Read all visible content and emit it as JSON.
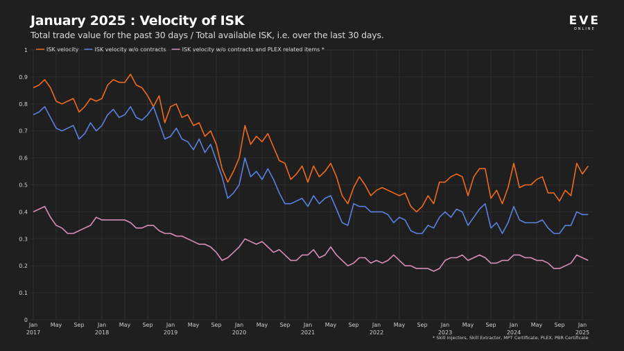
{
  "title": "January 2025 : Velocity of ISK",
  "subtitle": "Total trade value for the past 30 days / Total available ISK, i.e. over the last 30 days.",
  "logo": {
    "text": "EVE",
    "subtext": "ONLINE"
  },
  "footnote": "* Skill Injectors, Skill Extractor, MPT Certificate, PLEX, PBR Certificate",
  "chart_data": {
    "type": "line",
    "title": "January 2025 : Velocity of ISK",
    "xlabel": "",
    "ylabel": "",
    "ylim": [
      0,
      1
    ],
    "xlim": [
      "2017-01",
      "2025-03"
    ],
    "grid": true,
    "legend_position": "top-left",
    "y_ticks": [
      "0",
      "0.1",
      "0.2",
      "0.3",
      "0.4",
      "0.5",
      "0.6",
      "0.7",
      "0.8",
      "0.9",
      "1"
    ],
    "x_ticks": [
      {
        "month": "Jan",
        "year": "2017",
        "date": "2017-01"
      },
      {
        "month": "May",
        "year": "",
        "date": "2017-05"
      },
      {
        "month": "Sep",
        "year": "",
        "date": "2017-09"
      },
      {
        "month": "Jan",
        "year": "2018",
        "date": "2018-01"
      },
      {
        "month": "May",
        "year": "",
        "date": "2018-05"
      },
      {
        "month": "Sep",
        "year": "",
        "date": "2018-09"
      },
      {
        "month": "Jan",
        "year": "2019",
        "date": "2019-01"
      },
      {
        "month": "May",
        "year": "",
        "date": "2019-05"
      },
      {
        "month": "Sep",
        "year": "",
        "date": "2019-09"
      },
      {
        "month": "Jan",
        "year": "2020",
        "date": "2020-01"
      },
      {
        "month": "May",
        "year": "",
        "date": "2020-05"
      },
      {
        "month": "Sep",
        "year": "",
        "date": "2020-09"
      },
      {
        "month": "Jan",
        "year": "2021",
        "date": "2021-01"
      },
      {
        "month": "May",
        "year": "",
        "date": "2021-05"
      },
      {
        "month": "Sep",
        "year": "",
        "date": "2021-09"
      },
      {
        "month": "Jan",
        "year": "2022",
        "date": "2022-01"
      },
      {
        "month": "May",
        "year": "",
        "date": "2022-05"
      },
      {
        "month": "Sep",
        "year": "",
        "date": "2022-09"
      },
      {
        "month": "Jan",
        "year": "2023",
        "date": "2023-01"
      },
      {
        "month": "May",
        "year": "",
        "date": "2023-05"
      },
      {
        "month": "Sep",
        "year": "",
        "date": "2023-09"
      },
      {
        "month": "Jan",
        "year": "2024",
        "date": "2024-01"
      },
      {
        "month": "May",
        "year": "",
        "date": "2024-05"
      },
      {
        "month": "Sep",
        "year": "",
        "date": "2024-09"
      },
      {
        "month": "Jan",
        "year": "2025",
        "date": "2025-01"
      }
    ],
    "x": [
      "2017-01",
      "2017-02",
      "2017-03",
      "2017-04",
      "2017-05",
      "2017-06",
      "2017-07",
      "2017-08",
      "2017-09",
      "2017-10",
      "2017-11",
      "2017-12",
      "2018-01",
      "2018-02",
      "2018-03",
      "2018-04",
      "2018-05",
      "2018-06",
      "2018-07",
      "2018-08",
      "2018-09",
      "2018-10",
      "2018-11",
      "2018-12",
      "2019-01",
      "2019-02",
      "2019-03",
      "2019-04",
      "2019-05",
      "2019-06",
      "2019-07",
      "2019-08",
      "2019-09",
      "2019-10",
      "2019-11",
      "2019-12",
      "2020-01",
      "2020-02",
      "2020-03",
      "2020-04",
      "2020-05",
      "2020-06",
      "2020-07",
      "2020-08",
      "2020-09",
      "2020-10",
      "2020-11",
      "2020-12",
      "2021-01",
      "2021-02",
      "2021-03",
      "2021-04",
      "2021-05",
      "2021-06",
      "2021-07",
      "2021-08",
      "2021-09",
      "2021-10",
      "2021-11",
      "2021-12",
      "2022-01",
      "2022-02",
      "2022-03",
      "2022-04",
      "2022-05",
      "2022-06",
      "2022-07",
      "2022-08",
      "2022-09",
      "2022-10",
      "2022-11",
      "2022-12",
      "2023-01",
      "2023-02",
      "2023-03",
      "2023-04",
      "2023-05",
      "2023-06",
      "2023-07",
      "2023-08",
      "2023-09",
      "2023-10",
      "2023-11",
      "2023-12",
      "2024-01",
      "2024-02",
      "2024-03",
      "2024-04",
      "2024-05",
      "2024-06",
      "2024-07",
      "2024-08",
      "2024-09",
      "2024-10",
      "2024-11",
      "2024-12",
      "2025-01",
      "2025-02"
    ],
    "series": [
      {
        "name": "ISK velocity",
        "color": "#f26b1d",
        "values": [
          0.86,
          0.87,
          0.89,
          0.86,
          0.81,
          0.8,
          0.81,
          0.82,
          0.77,
          0.79,
          0.82,
          0.81,
          0.82,
          0.87,
          0.89,
          0.88,
          0.88,
          0.91,
          0.87,
          0.86,
          0.83,
          0.79,
          0.83,
          0.73,
          0.79,
          0.8,
          0.75,
          0.76,
          0.72,
          0.73,
          0.68,
          0.7,
          0.65,
          0.56,
          0.51,
          0.55,
          0.6,
          0.72,
          0.65,
          0.68,
          0.66,
          0.69,
          0.64,
          0.59,
          0.58,
          0.52,
          0.54,
          0.57,
          0.51,
          0.57,
          0.53,
          0.55,
          0.58,
          0.53,
          0.46,
          0.43,
          0.49,
          0.53,
          0.5,
          0.46,
          0.48,
          0.49,
          0.48,
          0.47,
          0.46,
          0.47,
          0.42,
          0.4,
          0.42,
          0.46,
          0.43,
          0.51,
          0.51,
          0.53,
          0.54,
          0.53,
          0.46,
          0.53,
          0.56,
          0.56,
          0.45,
          0.48,
          0.43,
          0.49,
          0.58,
          0.49,
          0.5,
          0.5,
          0.52,
          0.53,
          0.47,
          0.47,
          0.44,
          0.48,
          0.46,
          0.58,
          0.54,
          0.57
        ]
      },
      {
        "name": "ISK velocity w/o contracts",
        "color": "#5b82e0",
        "values": [
          0.76,
          0.77,
          0.79,
          0.75,
          0.71,
          0.7,
          0.71,
          0.72,
          0.67,
          0.69,
          0.73,
          0.7,
          0.72,
          0.76,
          0.78,
          0.75,
          0.76,
          0.79,
          0.75,
          0.74,
          0.76,
          0.79,
          0.73,
          0.67,
          0.68,
          0.71,
          0.67,
          0.66,
          0.63,
          0.67,
          0.62,
          0.65,
          0.59,
          0.53,
          0.45,
          0.47,
          0.5,
          0.6,
          0.53,
          0.55,
          0.52,
          0.56,
          0.52,
          0.47,
          0.43,
          0.43,
          0.44,
          0.45,
          0.42,
          0.46,
          0.43,
          0.45,
          0.46,
          0.41,
          0.36,
          0.35,
          0.43,
          0.42,
          0.42,
          0.4,
          0.4,
          0.4,
          0.39,
          0.36,
          0.38,
          0.37,
          0.33,
          0.32,
          0.32,
          0.35,
          0.34,
          0.38,
          0.4,
          0.38,
          0.41,
          0.4,
          0.35,
          0.38,
          0.41,
          0.43,
          0.34,
          0.36,
          0.32,
          0.36,
          0.42,
          0.37,
          0.36,
          0.36,
          0.36,
          0.37,
          0.34,
          0.32,
          0.32,
          0.35,
          0.35,
          0.4,
          0.39,
          0.39
        ]
      },
      {
        "name": "ISK velocity w/o contracts and PLEX related items *",
        "color": "#d98fb8",
        "values": [
          0.4,
          0.41,
          0.42,
          0.38,
          0.35,
          0.34,
          0.32,
          0.32,
          0.33,
          0.34,
          0.35,
          0.38,
          0.37,
          0.37,
          0.37,
          0.37,
          0.37,
          0.36,
          0.34,
          0.34,
          0.35,
          0.35,
          0.33,
          0.32,
          0.32,
          0.31,
          0.31,
          0.3,
          0.29,
          0.28,
          0.28,
          0.27,
          0.25,
          0.22,
          0.23,
          0.25,
          0.27,
          0.3,
          0.29,
          0.28,
          0.29,
          0.27,
          0.25,
          0.26,
          0.24,
          0.22,
          0.22,
          0.24,
          0.24,
          0.26,
          0.23,
          0.24,
          0.27,
          0.24,
          0.22,
          0.2,
          0.21,
          0.23,
          0.23,
          0.21,
          0.22,
          0.21,
          0.22,
          0.24,
          0.22,
          0.2,
          0.2,
          0.19,
          0.19,
          0.19,
          0.18,
          0.19,
          0.22,
          0.23,
          0.23,
          0.24,
          0.22,
          0.23,
          0.24,
          0.23,
          0.21,
          0.21,
          0.22,
          0.22,
          0.24,
          0.24,
          0.23,
          0.23,
          0.22,
          0.22,
          0.21,
          0.19,
          0.19,
          0.2,
          0.21,
          0.24,
          0.23,
          0.22
        ]
      }
    ]
  }
}
